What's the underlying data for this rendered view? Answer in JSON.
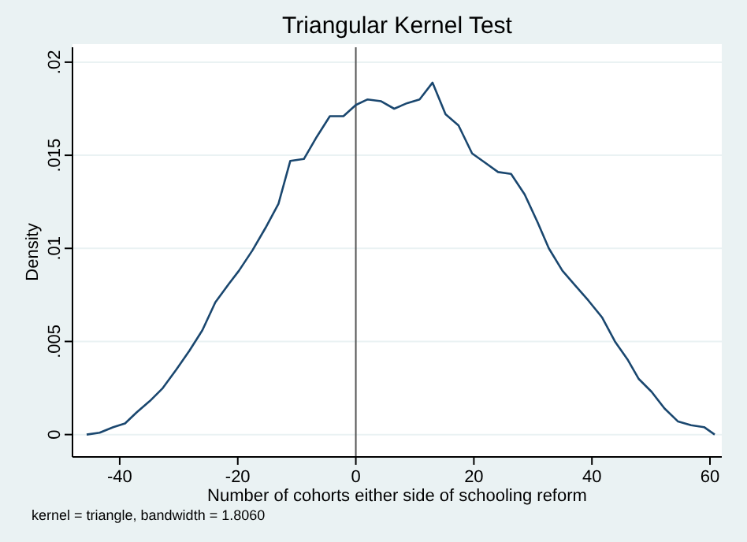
{
  "chart_data": {
    "type": "line",
    "title": "Triangular Kernel Test",
    "xlabel": "Number of cohorts either side of schooling reform",
    "ylabel": "Density",
    "annotations": [
      "kernel = triangle, bandwidth = 1.8060"
    ],
    "x": [
      -45.6,
      -43.4,
      -41.1,
      -39.1,
      -37.1,
      -34.9,
      -32.7,
      -30.4,
      -28.2,
      -26.0,
      -23.8,
      -21.5,
      -19.8,
      -17.5,
      -15.3,
      -13.1,
      -11.1,
      -8.8,
      -6.6,
      -4.4,
      -2.1,
      0,
      2.0,
      4.3,
      6.5,
      8.7,
      10.8,
      13.0,
      15.2,
      17.4,
      19.7,
      21.9,
      24.1,
      26.3,
      28.6,
      30.8,
      32.7,
      35.0,
      37.2,
      39.4,
      41.7,
      43.9,
      46.1,
      47.9,
      50.1,
      52.3,
      54.6,
      56.8,
      59.0,
      60.8
    ],
    "series": [
      {
        "color": "#1a476f",
        "values": [
          0,
          0.0001,
          0.0004,
          0.0006,
          0.0012,
          0.0018,
          0.0025,
          0.0035,
          0.0045,
          0.0056,
          0.0071,
          0.0081,
          0.0088,
          0.0099,
          0.0111,
          0.0124,
          0.0147,
          0.0148,
          0.016,
          0.0171,
          0.0171,
          0.0177,
          0.018,
          0.0179,
          0.0175,
          0.0178,
          0.018,
          0.0189,
          0.0172,
          0.0166,
          0.0151,
          0.0146,
          0.0141,
          0.014,
          0.0129,
          0.0114,
          0.01,
          0.0088,
          0.008,
          0.0072,
          0.0063,
          0.005,
          0.004,
          0.003,
          0.0023,
          0.0014,
          0.0007,
          0.0005,
          0.0004,
          0
        ]
      }
    ],
    "xlim": [
      -48,
      62
    ],
    "xticks": [
      -40,
      -20,
      0,
      20,
      40,
      60
    ],
    "ylim": [
      -0.0012,
      0.0208
    ],
    "yticks": [
      {
        "value": 0,
        "label": "0"
      },
      {
        "value": 0.005,
        "label": ".005"
      },
      {
        "value": 0.01,
        "label": ".01"
      },
      {
        "value": 0.015,
        "label": ".015"
      },
      {
        "value": 0.02,
        "label": ".02"
      }
    ],
    "grid": "y",
    "ref_lines": [
      {
        "axis": "x",
        "value": 0,
        "color": "#555555"
      }
    ],
    "marker": "none",
    "line_style": "solid"
  }
}
